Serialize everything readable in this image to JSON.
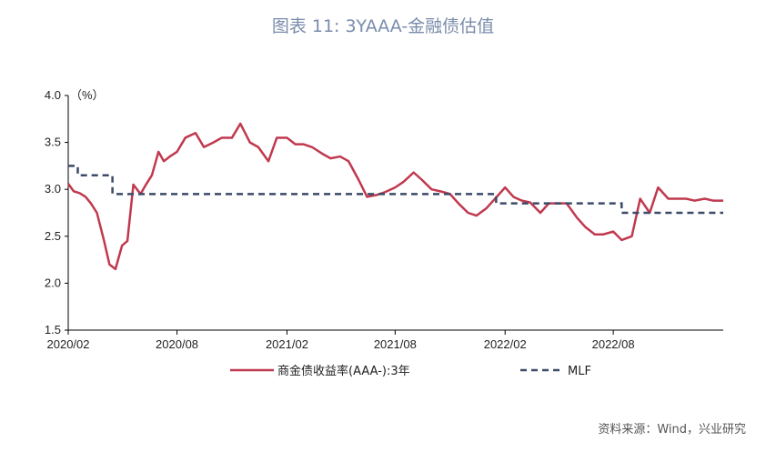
{
  "header": {
    "title": "图表 11: 3YAAA-金融债估值"
  },
  "footer": {
    "source": "资料来源：Wind，兴业研究"
  },
  "chart_data": {
    "type": "line",
    "title": "图表 11: 3YAAA-金融债估值",
    "ylabel": "（%）",
    "ylim": [
      1.5,
      4.0
    ],
    "yticks": [
      "1.5",
      "2.0",
      "2.5",
      "3.0",
      "3.5",
      "4.0"
    ],
    "xlim": [
      "2020-02",
      "2023-02"
    ],
    "xticks": [
      "2020/02",
      "2020/08",
      "2021/02",
      "2021/08",
      "2022/02",
      "2022/08"
    ],
    "grid": false,
    "legend_position": "bottom",
    "series": [
      {
        "name": "商金债收益率(AAA-):3年",
        "color": "#c0394e",
        "style": "solid",
        "x": [
          "2020-02-01",
          "2020-02-10",
          "2020-02-20",
          "2020-03-01",
          "2020-03-10",
          "2020-03-20",
          "2020-04-01",
          "2020-04-10",
          "2020-04-20",
          "2020-05-01",
          "2020-05-10",
          "2020-05-20",
          "2020-06-01",
          "2020-06-10",
          "2020-06-20",
          "2020-07-01",
          "2020-07-10",
          "2020-07-20",
          "2020-08-01",
          "2020-08-15",
          "2020-09-01",
          "2020-09-15",
          "2020-10-01",
          "2020-10-15",
          "2020-11-01",
          "2020-11-15",
          "2020-12-01",
          "2020-12-15",
          "2021-01-01",
          "2021-01-15",
          "2021-02-01",
          "2021-02-15",
          "2021-03-01",
          "2021-03-15",
          "2021-04-01",
          "2021-04-15",
          "2021-05-01",
          "2021-05-15",
          "2021-06-01",
          "2021-06-15",
          "2021-07-01",
          "2021-07-15",
          "2021-08-01",
          "2021-08-15",
          "2021-09-01",
          "2021-09-15",
          "2021-10-01",
          "2021-10-15",
          "2021-11-01",
          "2021-11-15",
          "2021-12-01",
          "2021-12-15",
          "2022-01-01",
          "2022-01-15",
          "2022-02-01",
          "2022-02-15",
          "2022-03-01",
          "2022-03-15",
          "2022-04-01",
          "2022-04-15",
          "2022-05-01",
          "2022-05-15",
          "2022-06-01",
          "2022-06-15",
          "2022-07-01",
          "2022-07-15",
          "2022-08-01",
          "2022-08-15",
          "2022-09-01",
          "2022-09-15",
          "2022-10-01",
          "2022-10-15",
          "2022-11-01",
          "2022-11-15",
          "2022-12-01",
          "2022-12-15",
          "2023-01-01",
          "2023-01-15",
          "2023-02-01"
        ],
        "values": [
          3.06,
          2.98,
          2.96,
          2.92,
          2.85,
          2.75,
          2.45,
          2.2,
          2.15,
          2.4,
          2.45,
          3.05,
          2.95,
          3.05,
          3.15,
          3.4,
          3.3,
          3.35,
          3.4,
          3.55,
          3.6,
          3.45,
          3.5,
          3.55,
          3.55,
          3.7,
          3.5,
          3.45,
          3.3,
          3.55,
          3.55,
          3.48,
          3.48,
          3.45,
          3.38,
          3.33,
          3.35,
          3.3,
          3.1,
          2.92,
          2.94,
          2.97,
          3.02,
          3.08,
          3.18,
          3.1,
          3.0,
          2.98,
          2.95,
          2.85,
          2.75,
          2.72,
          2.8,
          2.9,
          3.02,
          2.92,
          2.88,
          2.86,
          2.75,
          2.85,
          2.85,
          2.85,
          2.7,
          2.6,
          2.52,
          2.52,
          2.55,
          2.46,
          2.5,
          2.9,
          2.75,
          3.02,
          2.9,
          2.9,
          2.9,
          2.88,
          2.9,
          2.88,
          2.88
        ]
      },
      {
        "name": "MLF",
        "color": "#3b4a68",
        "style": "dashed",
        "x": [
          "2020-02-01",
          "2020-02-17",
          "2020-04-15",
          "2020-12-31",
          "2021-12-31",
          "2022-01-17",
          "2022-08-15",
          "2023-02-01"
        ],
        "values": [
          3.25,
          3.15,
          2.95,
          2.95,
          2.95,
          2.85,
          2.75,
          2.75
        ]
      }
    ]
  }
}
